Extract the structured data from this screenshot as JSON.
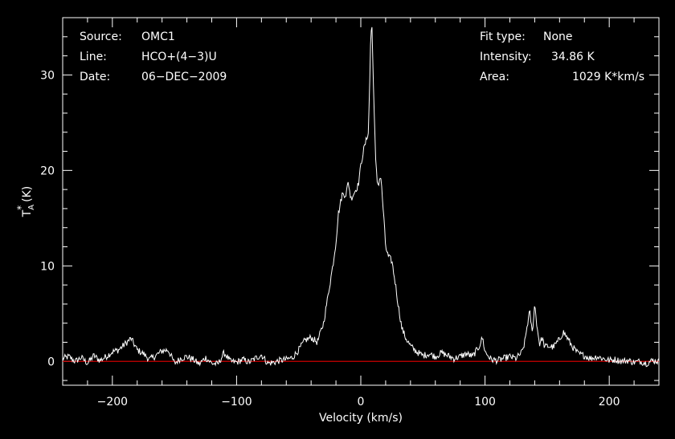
{
  "chart_data": {
    "type": "line",
    "ylabel": "T",
    "ylabel_sub": "A",
    "ylabel_sup": "*",
    "ylabel_unit": "(K)",
    "xlabel": "Velocity (km/s)",
    "xlim": [
      -240,
      240
    ],
    "ylim": [
      -2.5,
      36
    ],
    "x_major_ticks": [
      -200,
      -100,
      0,
      100,
      200
    ],
    "x_tick_labels": [
      "−200",
      "−100",
      "0",
      "100",
      "200"
    ],
    "y_major_ticks": [
      0,
      10,
      20,
      30
    ],
    "y_tick_labels": [
      "0",
      "10",
      "20",
      "30"
    ],
    "grid": false,
    "colors": {
      "background": "#000000",
      "axes": "#ffffff",
      "spectrum": "#ffffff",
      "baseline": "#cc0000"
    },
    "info_left": [
      {
        "label": "Source:",
        "value": "OMC1"
      },
      {
        "label": "Line:",
        "value": "HCO+(4−3)U"
      },
      {
        "label": "Date:",
        "value": "06−DEC−2009"
      }
    ],
    "info_right": [
      {
        "label": "Fit type:",
        "value": "None"
      },
      {
        "label": "Intensity:",
        "value": "34.86 K"
      },
      {
        "label": "Area:",
        "value": "1029 K*km/s"
      }
    ],
    "baseline_value": 0,
    "series": [
      {
        "x": [
          -240,
          -235,
          -230,
          -225,
          -220,
          -215,
          -210,
          -205,
          -200,
          -195,
          -190,
          -185,
          -180,
          -175,
          -170,
          -165,
          -160,
          -155,
          -150,
          -145,
          -140,
          -135,
          -130,
          -125,
          -120,
          -115,
          -110,
          -105,
          -100,
          -95,
          -90,
          -85,
          -80,
          -75,
          -70,
          -65,
          -60,
          -55,
          -50,
          -45,
          -40,
          -35,
          -30,
          -25,
          -22,
          -20,
          -18,
          -15,
          -12,
          -10,
          -8,
          -6,
          -4,
          -2,
          0,
          2,
          4,
          6,
          7,
          8,
          9,
          10,
          11,
          12,
          13,
          14,
          15,
          16,
          18,
          20,
          22,
          25,
          28,
          30,
          33,
          36,
          40,
          45,
          50,
          55,
          60,
          65,
          70,
          75,
          80,
          85,
          90,
          95,
          98,
          100,
          105,
          110,
          115,
          120,
          125,
          130,
          132,
          134,
          136,
          138,
          140,
          142,
          144,
          146,
          148,
          150,
          155,
          160,
          163,
          166,
          170,
          175,
          180,
          185,
          190,
          195,
          200,
          205,
          210,
          215,
          220,
          225,
          230,
          235,
          240
        ],
        "values": [
          0.3,
          0.5,
          0.0,
          0.4,
          -0.2,
          0.6,
          0.1,
          0.5,
          1.0,
          1.2,
          1.8,
          2.4,
          1.2,
          0.8,
          0.2,
          0.6,
          1.1,
          1.2,
          -0.2,
          0.3,
          0.5,
          0.2,
          -0.3,
          0.4,
          -0.2,
          -0.3,
          0.9,
          0.0,
          -0.1,
          0.2,
          -0.1,
          0.3,
          0.7,
          -0.2,
          -0.1,
          0.1,
          0.2,
          0.4,
          1.2,
          2.2,
          2.5,
          2.0,
          4.0,
          8.0,
          10.5,
          12.5,
          15.5,
          17.5,
          17.5,
          18.8,
          17.0,
          17.5,
          18.0,
          18.5,
          20.5,
          22.0,
          23.0,
          24.0,
          28.0,
          34.5,
          34.9,
          30.0,
          25.0,
          21.0,
          19.0,
          18.5,
          19.0,
          19.5,
          16.0,
          12.0,
          11.0,
          10.5,
          8.0,
          6.0,
          3.5,
          2.5,
          1.6,
          1.0,
          0.6,
          0.8,
          0.5,
          0.9,
          0.6,
          0.3,
          0.5,
          0.8,
          0.5,
          1.5,
          2.5,
          1.0,
          0.2,
          0.1,
          0.3,
          0.5,
          0.3,
          1.0,
          2.0,
          3.8,
          5.2,
          3.0,
          6.0,
          3.5,
          1.8,
          2.5,
          1.5,
          1.6,
          1.5,
          2.3,
          3.1,
          2.5,
          1.6,
          0.8,
          0.6,
          0.3,
          0.5,
          0.3,
          0.1,
          0.2,
          0.0,
          0.1,
          -0.1,
          0.0,
          -0.2,
          0.1,
          0.0
        ]
      }
    ]
  }
}
